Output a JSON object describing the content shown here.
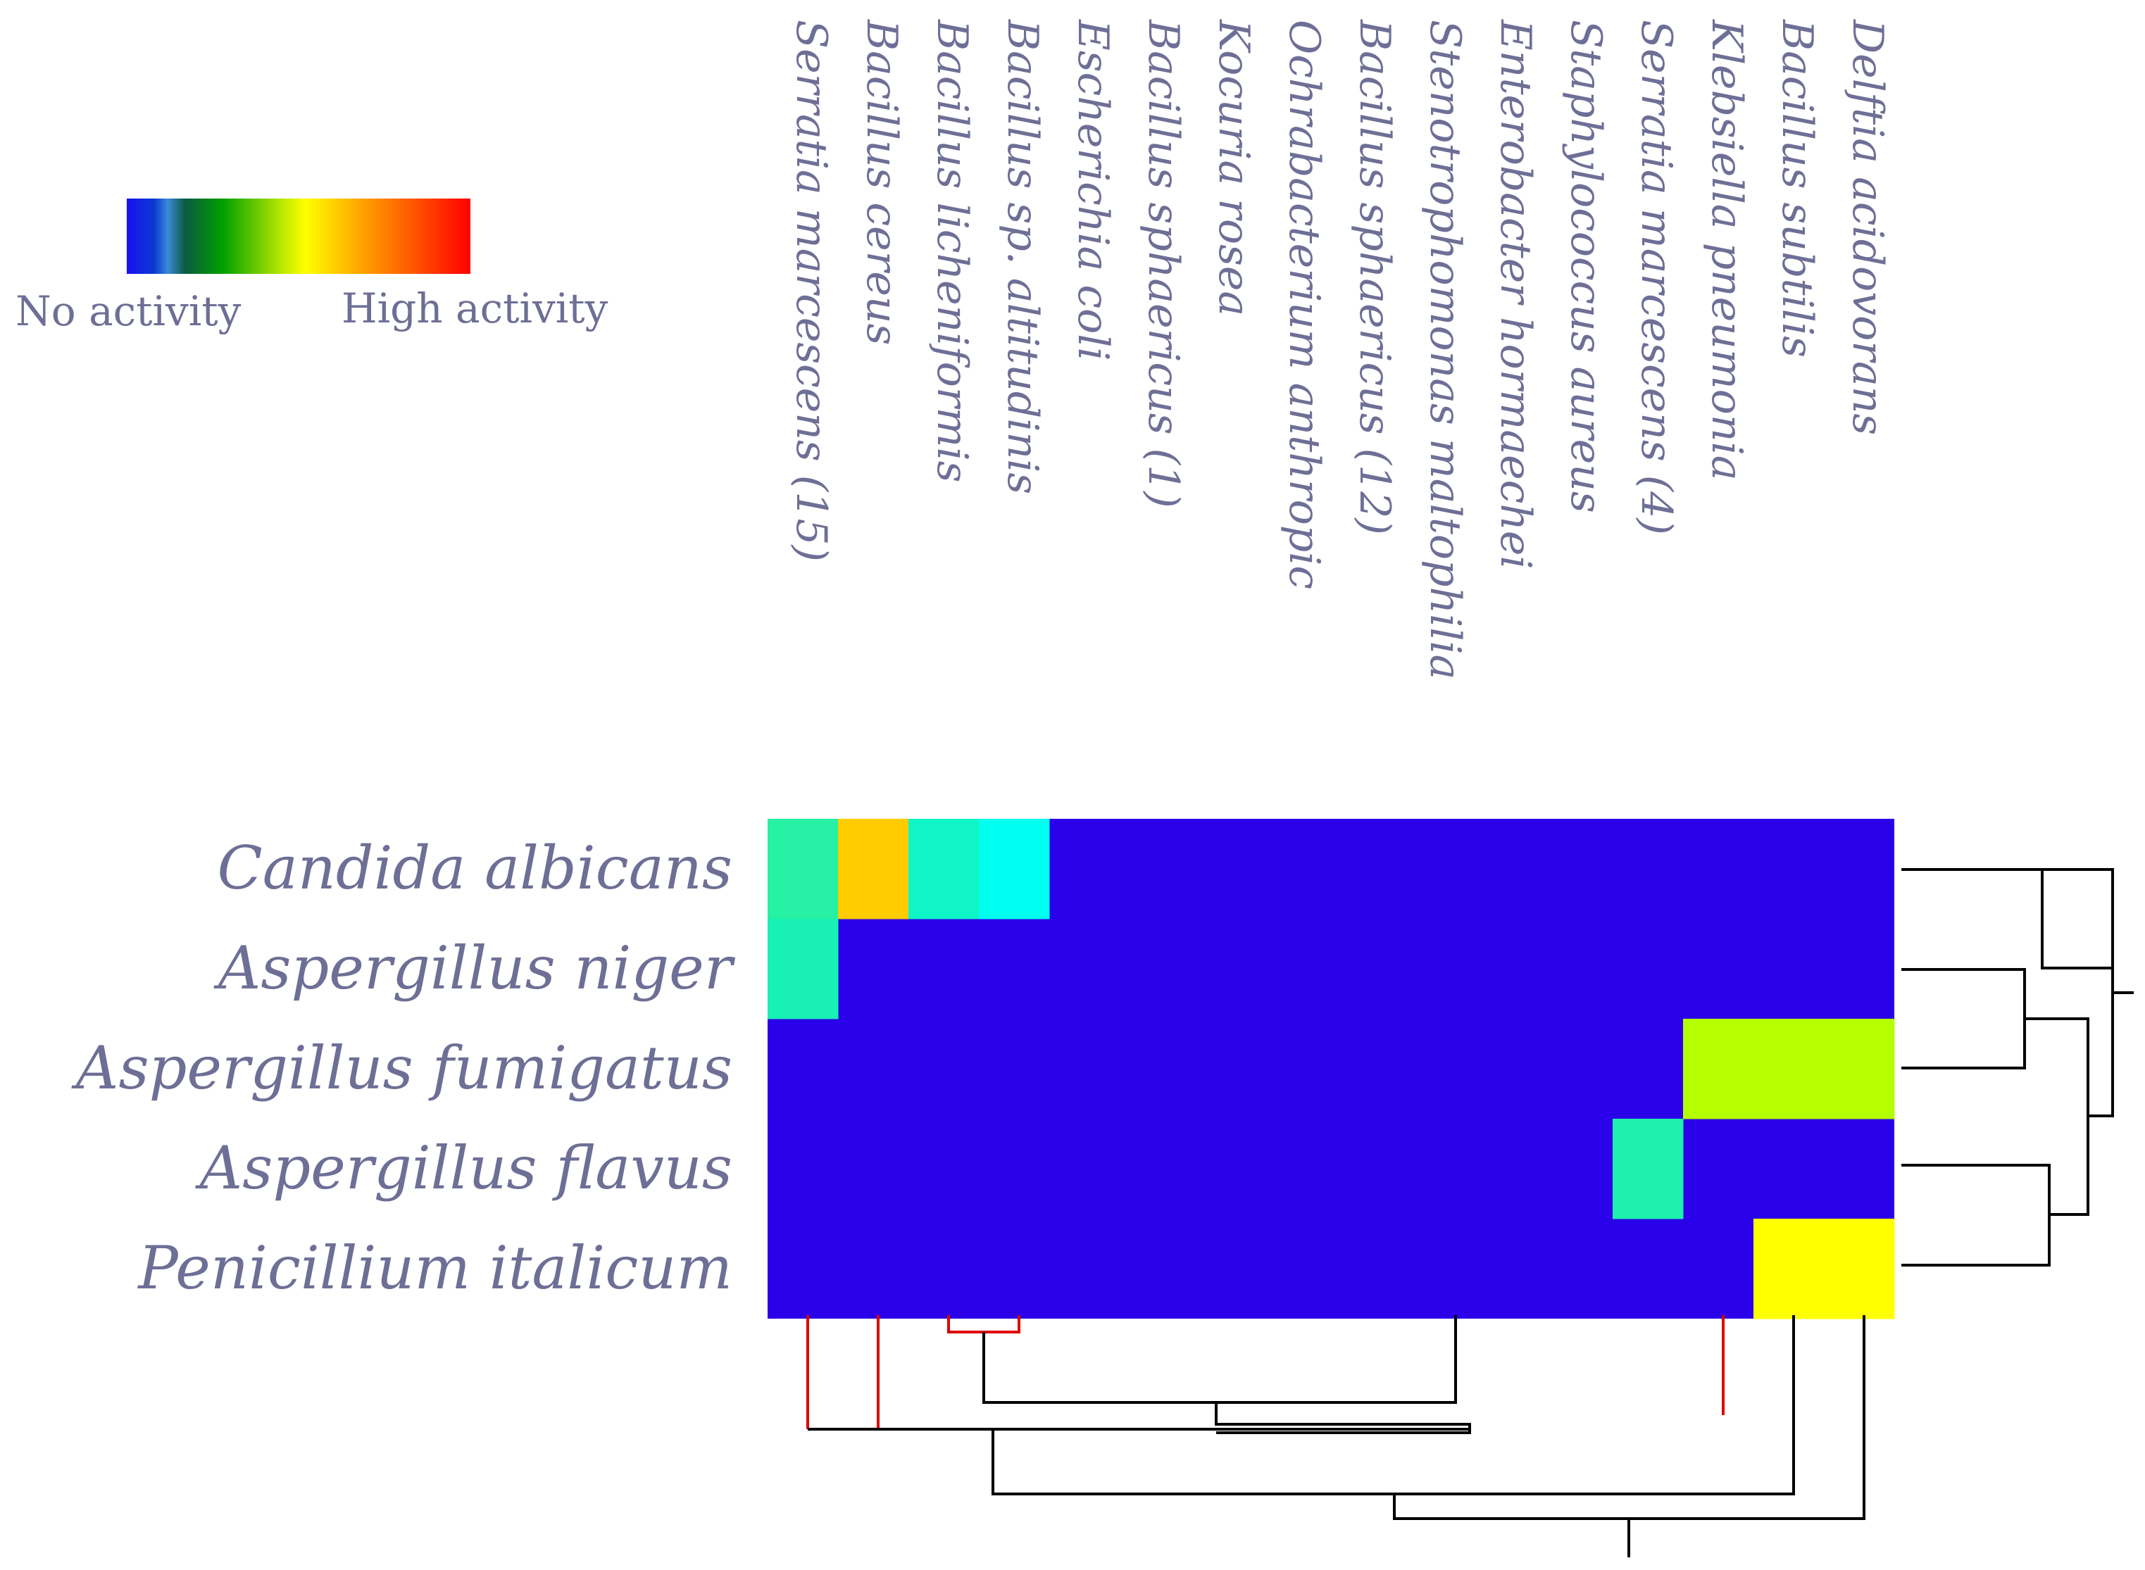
{
  "chart_data": {
    "type": "heatmap",
    "legend": {
      "low_label": "No activity",
      "high_label": "High activity",
      "colormap": [
        "#1a1aff",
        "#0050c8",
        "#40a0e0",
        "#006a40",
        "#00a000",
        "#ffff00",
        "#ff9000",
        "#ff0000"
      ]
    },
    "columns": [
      "Serratia marcescens (15)",
      "Bacillus cereus",
      "Bacillus licheniformis",
      "Bacillus sp. altitudinis",
      "Escherichia coli",
      "Bacillus sphaericus (1)",
      "Kocuria rosea",
      "Ochrabacterium anthropic",
      "Bacillus sphaericus (12)",
      "Stenotrophomonas maltophilia",
      "Enterobacter hormaechei",
      "Staphylococcus aureus",
      "Serratia marcescens (4)",
      "Klebsiella pneumonia",
      "Bacillus subtilis",
      "Delftia acidovorans"
    ],
    "rows": [
      "Candida albicans",
      "Aspergillus niger",
      "Aspergillus fumigatus",
      "Aspergillus flavus",
      "Penicillium italicum"
    ],
    "values": [
      [
        0.35,
        0.65,
        0.32,
        0.3,
        0,
        0,
        0,
        0,
        0,
        0,
        0,
        0,
        0,
        0,
        0,
        0
      ],
      [
        0.33,
        0,
        0,
        0,
        0,
        0,
        0,
        0,
        0,
        0,
        0,
        0,
        0,
        0,
        0,
        0
      ],
      [
        0,
        0,
        0,
        0,
        0,
        0,
        0,
        0,
        0,
        0,
        0,
        0,
        0,
        0.55,
        0.55,
        0.55
      ],
      [
        0,
        0,
        0,
        0,
        0,
        0,
        0,
        0,
        0,
        0,
        0,
        0,
        0.34,
        0,
        0,
        0
      ],
      [
        0,
        0,
        0,
        0,
        0,
        0,
        0,
        0,
        0,
        0,
        0,
        0,
        0,
        0,
        0.6,
        0.6
      ]
    ],
    "value_range": [
      0,
      1
    ],
    "row_dendrogram": true,
    "column_dendrogram": true,
    "colors": {
      "none": "#2a00e8",
      "label": "#6e6f96",
      "dendrogram": "#000000",
      "dendrogram_highlight": "#e00000"
    }
  }
}
